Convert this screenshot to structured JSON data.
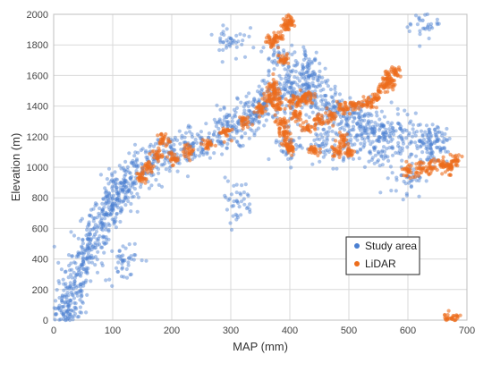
{
  "chart_data": {
    "type": "scatter",
    "title": "",
    "xlabel": "MAP (mm)",
    "ylabel": "Elevation (m)",
    "xlim": [
      0,
      700
    ],
    "ylim": [
      0,
      2000
    ],
    "xticks": [
      "0",
      "100",
      "200",
      "300",
      "400",
      "500",
      "600",
      "700"
    ],
    "yticks": [
      "0",
      "200",
      "400",
      "600",
      "800",
      "1000",
      "1200",
      "1400",
      "1600",
      "1800",
      "2000"
    ],
    "grid": true,
    "legend_position": "bottom-right",
    "series": [
      {
        "name": "Study area",
        "color": "#4a7fd1",
        "point_count": 2000,
        "sample_points": [
          [
            20,
            20
          ],
          [
            25,
            90
          ],
          [
            30,
            180
          ],
          [
            40,
            300
          ],
          [
            50,
            400
          ],
          [
            60,
            470
          ],
          [
            70,
            560
          ],
          [
            80,
            630
          ],
          [
            90,
            690
          ],
          [
            100,
            760
          ],
          [
            110,
            820
          ],
          [
            120,
            880
          ],
          [
            130,
            930
          ],
          [
            150,
            990
          ],
          [
            170,
            1040
          ],
          [
            200,
            1100
          ],
          [
            230,
            1140
          ],
          [
            250,
            1160
          ],
          [
            280,
            1220
          ],
          [
            300,
            1270
          ],
          [
            320,
            1300
          ],
          [
            340,
            1350
          ],
          [
            360,
            1420
          ],
          [
            380,
            1480
          ],
          [
            400,
            1520
          ],
          [
            420,
            1500
          ],
          [
            440,
            1440
          ],
          [
            460,
            1400
          ],
          [
            480,
            1360
          ],
          [
            500,
            1320
          ],
          [
            520,
            1280
          ],
          [
            540,
            1250
          ],
          [
            560,
            1220
          ],
          [
            590,
            1190
          ],
          [
            620,
            1170
          ],
          [
            640,
            1150
          ],
          [
            400,
            1160
          ],
          [
            450,
            1140
          ],
          [
            500,
            1120
          ],
          [
            550,
            1100
          ],
          [
            600,
            940
          ],
          [
            625,
            1960
          ],
          [
            650,
            1170
          ],
          [
            380,
            1720
          ],
          [
            430,
            1660
          ],
          [
            440,
            1580
          ],
          [
            300,
            1840
          ],
          [
            310,
            780
          ],
          [
            120,
            390
          ],
          [
            20,
            0
          ]
        ]
      },
      {
        "name": "LiDAR",
        "color": "#ed6d1c",
        "point_count": 1200,
        "sample_points": [
          [
            150,
            930
          ],
          [
            160,
            1000
          ],
          [
            175,
            1080
          ],
          [
            185,
            1180
          ],
          [
            200,
            1060
          ],
          [
            230,
            1100
          ],
          [
            260,
            1150
          ],
          [
            290,
            1230
          ],
          [
            320,
            1300
          ],
          [
            350,
            1380
          ],
          [
            365,
            1450
          ],
          [
            370,
            1530
          ],
          [
            375,
            1470
          ],
          [
            380,
            1400
          ],
          [
            385,
            1300
          ],
          [
            390,
            1230
          ],
          [
            395,
            1150
          ],
          [
            370,
            1830
          ],
          [
            380,
            1850
          ],
          [
            395,
            1930
          ],
          [
            400,
            1960
          ],
          [
            390,
            1700
          ],
          [
            405,
            1430
          ],
          [
            420,
            1450
          ],
          [
            430,
            1460
          ],
          [
            410,
            1340
          ],
          [
            430,
            1260
          ],
          [
            450,
            1300
          ],
          [
            470,
            1340
          ],
          [
            490,
            1380
          ],
          [
            510,
            1400
          ],
          [
            530,
            1420
          ],
          [
            545,
            1450
          ],
          [
            560,
            1520
          ],
          [
            565,
            1570
          ],
          [
            580,
            1620
          ],
          [
            570,
            1550
          ],
          [
            400,
            1110
          ],
          [
            440,
            1110
          ],
          [
            480,
            1105
          ],
          [
            490,
            1180
          ],
          [
            500,
            1110
          ],
          [
            600,
            980
          ],
          [
            620,
            990
          ],
          [
            640,
            1000
          ],
          [
            660,
            1020
          ],
          [
            680,
            1040
          ],
          [
            670,
            1000
          ],
          [
            665,
            0
          ],
          [
            680,
            0
          ]
        ]
      }
    ]
  }
}
